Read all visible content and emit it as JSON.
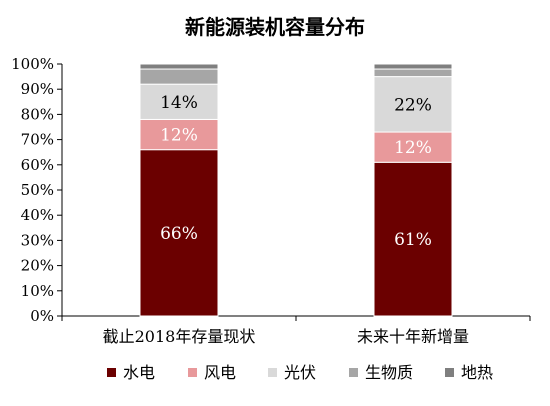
{
  "chart_data": {
    "type": "bar",
    "stacked": true,
    "title": "新能源装机容量分布",
    "categories": [
      "截止2018年存量现状",
      "未来十年新增量"
    ],
    "ylim": [
      0,
      1
    ],
    "yticks": [
      {
        "value": 0,
        "label": "0%"
      },
      {
        "value": 0.1,
        "label": "10%"
      },
      {
        "value": 0.2,
        "label": "20%"
      },
      {
        "value": 0.3,
        "label": "30%"
      },
      {
        "value": 0.4,
        "label": "40%"
      },
      {
        "value": 0.5,
        "label": "50%"
      },
      {
        "value": 0.6,
        "label": "60%"
      },
      {
        "value": 0.7,
        "label": "70%"
      },
      {
        "value": 0.8,
        "label": "80%"
      },
      {
        "value": 0.9,
        "label": "90%"
      },
      {
        "value": 1.0,
        "label": "100%"
      }
    ],
    "series": [
      {
        "name": "水电",
        "color": "#6b0000",
        "label_color": "#ffffff",
        "values": [
          0.66,
          0.61
        ],
        "labels": [
          "66%",
          "61%"
        ]
      },
      {
        "name": "风电",
        "color": "#e8999b",
        "label_color": "#ffffff",
        "values": [
          0.12,
          0.12
        ],
        "labels": [
          "12%",
          "12%"
        ]
      },
      {
        "name": "光伏",
        "color": "#d9d9d9",
        "label_color": "#000000",
        "values": [
          0.14,
          0.22
        ],
        "labels": [
          "14%",
          "22%"
        ]
      },
      {
        "name": "生物质",
        "color": "#a6a6a6",
        "label_color": "#000000",
        "values": [
          0.06,
          0.03
        ],
        "labels": [
          "",
          ""
        ]
      },
      {
        "name": "地热",
        "color": "#7f7f7f",
        "label_color": "#000000",
        "values": [
          0.02,
          0.02
        ],
        "labels": [
          "",
          ""
        ]
      }
    ],
    "grid": false,
    "legend": "bottom"
  }
}
